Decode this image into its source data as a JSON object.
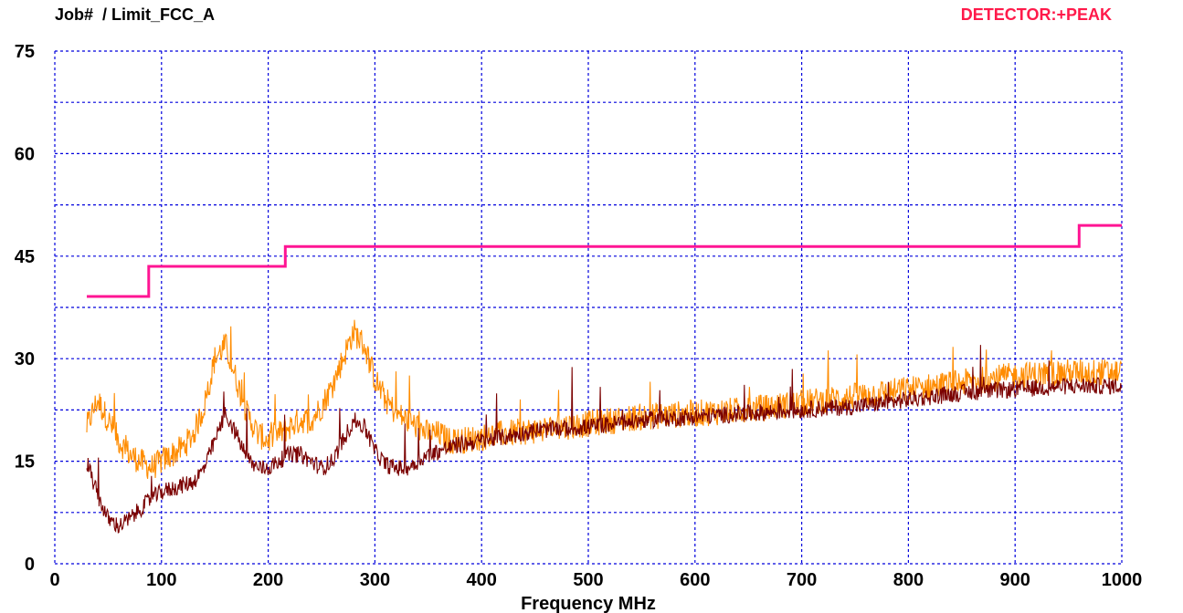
{
  "colors": {
    "background": "#ffffff",
    "grid": "#0000dd",
    "limit": "#ff1493",
    "detector_text": "#ff1a4a",
    "trace_orange": "#ff8c00",
    "trace_dark": "#7a0000"
  },
  "chart_data": {
    "type": "line",
    "title": "Job#  / Limit_FCC_A",
    "detector": "DETECTOR:+PEAK",
    "xlabel": "Frequency MHz",
    "ylabel": "",
    "xlim": [
      0,
      1000
    ],
    "ylim": [
      0,
      75
    ],
    "xticks": [
      "0",
      "100",
      "200",
      "300",
      "400",
      "500",
      "600",
      "700",
      "800",
      "900",
      "1000"
    ],
    "yticks": [
      "0",
      "15",
      "30",
      "45",
      "60",
      "75"
    ],
    "grid": true,
    "grid_x_step": 100,
    "grid_y_step": 7.5,
    "series": [
      {
        "name": "",
        "role": "limit",
        "color": "#ff1493",
        "x": [
          30,
          88,
          88,
          216,
          216,
          960,
          960,
          1000
        ],
        "y": [
          39.1,
          39.1,
          43.5,
          43.5,
          46.4,
          46.4,
          49.5,
          49.5
        ]
      },
      {
        "name": "",
        "role": "trace",
        "color": "#ff8c00",
        "x": [
          30,
          40,
          50,
          60,
          70,
          80,
          90,
          100,
          110,
          120,
          130,
          140,
          150,
          160,
          170,
          180,
          190,
          200,
          210,
          220,
          230,
          240,
          250,
          260,
          270,
          280,
          290,
          300,
          310,
          320,
          330,
          340,
          350,
          360,
          370,
          380,
          400,
          420,
          450,
          500,
          550,
          600,
          650,
          700,
          750,
          800,
          850,
          900,
          950,
          1000
        ],
        "y": [
          20,
          24,
          21,
          18,
          16,
          15,
          14,
          15,
          16,
          17,
          19,
          23,
          30,
          32,
          27,
          22,
          19,
          18,
          19,
          20,
          21,
          21,
          23,
          26,
          30,
          34,
          32,
          27,
          24,
          22,
          21,
          20,
          19,
          19,
          18,
          18,
          18.5,
          19,
          19.5,
          20.5,
          21.5,
          22,
          22.5,
          23.5,
          24.5,
          25.5,
          26.5,
          27.5,
          28,
          28
        ]
      },
      {
        "name": "",
        "role": "trace",
        "color": "#7a0000",
        "x": [
          30,
          40,
          50,
          60,
          70,
          80,
          90,
          100,
          110,
          120,
          130,
          140,
          150,
          160,
          170,
          180,
          190,
          200,
          210,
          220,
          230,
          240,
          250,
          260,
          270,
          280,
          290,
          300,
          310,
          320,
          330,
          340,
          350,
          360,
          370,
          380,
          400,
          420,
          450,
          500,
          550,
          600,
          650,
          700,
          750,
          800,
          850,
          900,
          950,
          1000
        ],
        "y": [
          15,
          10,
          6.5,
          5.5,
          6.5,
          8,
          9.5,
          10.5,
          11,
          11.5,
          12,
          14,
          18,
          22,
          19,
          15.5,
          14,
          14,
          15,
          16,
          16,
          15,
          14,
          15,
          18,
          21,
          20,
          16.5,
          14.5,
          14,
          14,
          15,
          16,
          16.5,
          17,
          17.5,
          18,
          18.5,
          19.5,
          20,
          21,
          21.5,
          22,
          22.5,
          23,
          24,
          25,
          25.5,
          26,
          26
        ]
      }
    ]
  }
}
